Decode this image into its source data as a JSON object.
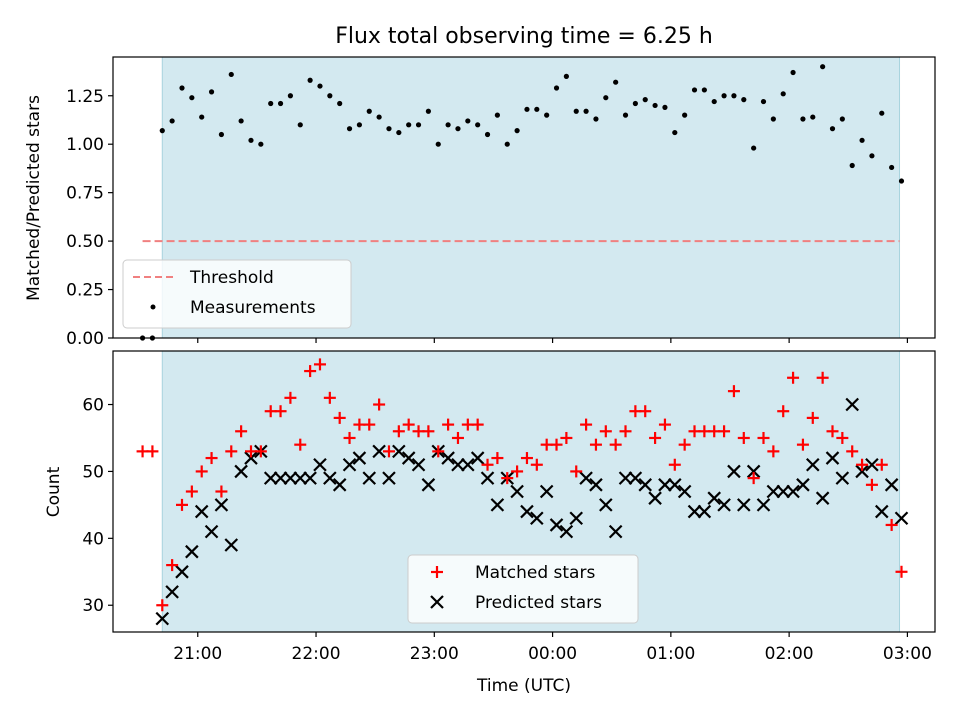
{
  "chart_data": [
    {
      "type": "scatter",
      "title": "Flux total observing time = 6.25 h",
      "xlabel": "",
      "ylabel": "Matched/Predicted stars",
      "ylim": [
        0,
        1.45
      ],
      "yticks": [
        "0.00",
        "0.25",
        "0.50",
        "0.75",
        "1.00",
        "1.25"
      ],
      "ytick_values": [
        0,
        0.25,
        0.5,
        0.75,
        1.0,
        1.25
      ],
      "shaded_region": {
        "start": "20:42",
        "end": "02:56",
        "color": "#d3e9f0"
      },
      "threshold": {
        "name": "Threshold",
        "value": 0.5,
        "start": "20:32",
        "end": "02:56",
        "color": "#f08080"
      },
      "legend": {
        "position": "lower-left",
        "entries": [
          "Threshold",
          "Measurements"
        ]
      },
      "series": [
        {
          "name": "Measurements",
          "color": "#000000",
          "points": [
            [
              "20:32",
              0.0
            ],
            [
              "20:37",
              0.0
            ],
            [
              "20:42",
              1.07
            ],
            [
              "20:47",
              1.12
            ],
            [
              "20:52",
              1.29
            ],
            [
              "20:57",
              1.24
            ],
            [
              "21:02",
              1.14
            ],
            [
              "21:07",
              1.27
            ],
            [
              "21:12",
              1.05
            ],
            [
              "21:17",
              1.36
            ],
            [
              "21:22",
              1.12
            ],
            [
              "21:27",
              1.02
            ],
            [
              "21:32",
              1.0
            ],
            [
              "21:37",
              1.21
            ],
            [
              "21:42",
              1.21
            ],
            [
              "21:47",
              1.25
            ],
            [
              "21:52",
              1.1
            ],
            [
              "21:57",
              1.33
            ],
            [
              "22:02",
              1.3
            ],
            [
              "22:07",
              1.25
            ],
            [
              "22:12",
              1.21
            ],
            [
              "22:17",
              1.08
            ],
            [
              "22:22",
              1.1
            ],
            [
              "22:27",
              1.17
            ],
            [
              "22:32",
              1.14
            ],
            [
              "22:37",
              1.08
            ],
            [
              "22:42",
              1.06
            ],
            [
              "22:47",
              1.1
            ],
            [
              "22:52",
              1.1
            ],
            [
              "22:57",
              1.17
            ],
            [
              "23:02",
              1.0
            ],
            [
              "23:07",
              1.1
            ],
            [
              "23:12",
              1.08
            ],
            [
              "23:17",
              1.12
            ],
            [
              "23:22",
              1.1
            ],
            [
              "23:27",
              1.05
            ],
            [
              "23:32",
              1.15
            ],
            [
              "23:37",
              1.0
            ],
            [
              "23:42",
              1.07
            ],
            [
              "23:47",
              1.18
            ],
            [
              "23:52",
              1.18
            ],
            [
              "23:57",
              1.15
            ],
            [
              "00:02",
              1.29
            ],
            [
              "00:07",
              1.35
            ],
            [
              "00:12",
              1.17
            ],
            [
              "00:17",
              1.17
            ],
            [
              "00:22",
              1.13
            ],
            [
              "00:27",
              1.24
            ],
            [
              "00:32",
              1.32
            ],
            [
              "00:37",
              1.15
            ],
            [
              "00:42",
              1.21
            ],
            [
              "00:47",
              1.23
            ],
            [
              "00:52",
              1.2
            ],
            [
              "00:57",
              1.19
            ],
            [
              "01:02",
              1.06
            ],
            [
              "01:07",
              1.15
            ],
            [
              "01:12",
              1.28
            ],
            [
              "01:17",
              1.28
            ],
            [
              "01:22",
              1.22
            ],
            [
              "01:27",
              1.25
            ],
            [
              "01:32",
              1.25
            ],
            [
              "01:37",
              1.23
            ],
            [
              "01:42",
              0.98
            ],
            [
              "01:47",
              1.22
            ],
            [
              "01:52",
              1.13
            ],
            [
              "01:57",
              1.26
            ],
            [
              "02:02",
              1.37
            ],
            [
              "02:07",
              1.13
            ],
            [
              "02:12",
              1.14
            ],
            [
              "02:17",
              1.4
            ],
            [
              "02:22",
              1.08
            ],
            [
              "02:27",
              1.13
            ],
            [
              "02:32",
              0.89
            ],
            [
              "02:37",
              1.02
            ],
            [
              "02:42",
              0.94
            ],
            [
              "02:47",
              1.16
            ],
            [
              "02:52",
              0.88
            ],
            [
              "02:57",
              0.81
            ]
          ]
        }
      ]
    },
    {
      "type": "scatter",
      "title": "",
      "xlabel": "Time (UTC)",
      "ylabel": "Count",
      "ylim": [
        26,
        68
      ],
      "yticks": [
        "30",
        "40",
        "50",
        "60"
      ],
      "ytick_values": [
        30,
        40,
        50,
        60
      ],
      "xlim": [
        "20:17",
        "03:14"
      ],
      "xticks": [
        "21:00",
        "22:00",
        "23:00",
        "00:00",
        "01:00",
        "02:00",
        "03:00"
      ],
      "shaded_region": {
        "start": "20:42",
        "end": "02:56",
        "color": "#d3e9f0"
      },
      "legend": {
        "position": "lower-center",
        "entries": [
          "Matched stars",
          "Predicted stars"
        ]
      },
      "series": [
        {
          "name": "Matched stars",
          "marker": "+",
          "color": "#ff0000",
          "points": [
            [
              "20:32",
              53
            ],
            [
              "20:37",
              53
            ],
            [
              "20:42",
              30
            ],
            [
              "20:47",
              36
            ],
            [
              "20:52",
              45
            ],
            [
              "20:57",
              47
            ],
            [
              "21:02",
              50
            ],
            [
              "21:07",
              52
            ],
            [
              "21:12",
              47
            ],
            [
              "21:17",
              53
            ],
            [
              "21:22",
              56
            ],
            [
              "21:27",
              53
            ],
            [
              "21:32",
              53
            ],
            [
              "21:37",
              59
            ],
            [
              "21:42",
              59
            ],
            [
              "21:47",
              61
            ],
            [
              "21:52",
              54
            ],
            [
              "21:57",
              65
            ],
            [
              "22:02",
              66
            ],
            [
              "22:07",
              61
            ],
            [
              "22:12",
              58
            ],
            [
              "22:17",
              55
            ],
            [
              "22:22",
              57
            ],
            [
              "22:27",
              57
            ],
            [
              "22:32",
              60
            ],
            [
              "22:37",
              53
            ],
            [
              "22:42",
              56
            ],
            [
              "22:47",
              57
            ],
            [
              "22:52",
              56
            ],
            [
              "22:57",
              56
            ],
            [
              "23:02",
              53
            ],
            [
              "23:07",
              57
            ],
            [
              "23:12",
              55
            ],
            [
              "23:17",
              57
            ],
            [
              "23:22",
              57
            ],
            [
              "23:27",
              51
            ],
            [
              "23:32",
              52
            ],
            [
              "23:37",
              49
            ],
            [
              "23:42",
              50
            ],
            [
              "23:47",
              52
            ],
            [
              "23:52",
              51
            ],
            [
              "23:57",
              54
            ],
            [
              "00:02",
              54
            ],
            [
              "00:07",
              55
            ],
            [
              "00:12",
              50
            ],
            [
              "00:17",
              57
            ],
            [
              "00:22",
              54
            ],
            [
              "00:27",
              56
            ],
            [
              "00:32",
              54
            ],
            [
              "00:37",
              56
            ],
            [
              "00:42",
              59
            ],
            [
              "00:47",
              59
            ],
            [
              "00:52",
              55
            ],
            [
              "00:57",
              57
            ],
            [
              "01:02",
              51
            ],
            [
              "01:07",
              54
            ],
            [
              "01:12",
              56
            ],
            [
              "01:17",
              56
            ],
            [
              "01:22",
              56
            ],
            [
              "01:27",
              56
            ],
            [
              "01:32",
              62
            ],
            [
              "01:37",
              55
            ],
            [
              "01:42",
              49
            ],
            [
              "01:47",
              55
            ],
            [
              "01:52",
              53
            ],
            [
              "01:57",
              59
            ],
            [
              "02:02",
              64
            ],
            [
              "02:07",
              54
            ],
            [
              "02:12",
              58
            ],
            [
              "02:17",
              64
            ],
            [
              "02:22",
              56
            ],
            [
              "02:27",
              55
            ],
            [
              "02:32",
              53
            ],
            [
              "02:37",
              51
            ],
            [
              "02:42",
              48
            ],
            [
              "02:47",
              51
            ],
            [
              "02:52",
              42
            ],
            [
              "02:57",
              35
            ]
          ]
        },
        {
          "name": "Predicted stars",
          "marker": "x",
          "color": "#000000",
          "points": [
            [
              "20:42",
              28
            ],
            [
              "20:47",
              32
            ],
            [
              "20:52",
              35
            ],
            [
              "20:57",
              38
            ],
            [
              "21:02",
              44
            ],
            [
              "21:07",
              41
            ],
            [
              "21:12",
              45
            ],
            [
              "21:17",
              39
            ],
            [
              "21:22",
              50
            ],
            [
              "21:27",
              52
            ],
            [
              "21:32",
              53
            ],
            [
              "21:37",
              49
            ],
            [
              "21:42",
              49
            ],
            [
              "21:47",
              49
            ],
            [
              "21:52",
              49
            ],
            [
              "21:57",
              49
            ],
            [
              "22:02",
              51
            ],
            [
              "22:07",
              49
            ],
            [
              "22:12",
              48
            ],
            [
              "22:17",
              51
            ],
            [
              "22:22",
              52
            ],
            [
              "22:27",
              49
            ],
            [
              "22:32",
              53
            ],
            [
              "22:37",
              49
            ],
            [
              "22:42",
              53
            ],
            [
              "22:47",
              52
            ],
            [
              "22:52",
              51
            ],
            [
              "22:57",
              48
            ],
            [
              "23:02",
              53
            ],
            [
              "23:07",
              52
            ],
            [
              "23:12",
              51
            ],
            [
              "23:17",
              51
            ],
            [
              "23:22",
              52
            ],
            [
              "23:27",
              49
            ],
            [
              "23:32",
              45
            ],
            [
              "23:37",
              49
            ],
            [
              "23:42",
              47
            ],
            [
              "23:47",
              44
            ],
            [
              "23:52",
              43
            ],
            [
              "23:57",
              47
            ],
            [
              "00:02",
              42
            ],
            [
              "00:07",
              41
            ],
            [
              "00:12",
              43
            ],
            [
              "00:17",
              49
            ],
            [
              "00:22",
              48
            ],
            [
              "00:27",
              45
            ],
            [
              "00:32",
              41
            ],
            [
              "00:37",
              49
            ],
            [
              "00:42",
              49
            ],
            [
              "00:47",
              48
            ],
            [
              "00:52",
              46
            ],
            [
              "00:57",
              48
            ],
            [
              "01:02",
              48
            ],
            [
              "01:07",
              47
            ],
            [
              "01:12",
              44
            ],
            [
              "01:17",
              44
            ],
            [
              "01:22",
              46
            ],
            [
              "01:27",
              45
            ],
            [
              "01:32",
              50
            ],
            [
              "01:37",
              45
            ],
            [
              "01:42",
              50
            ],
            [
              "01:47",
              45
            ],
            [
              "01:52",
              47
            ],
            [
              "01:57",
              47
            ],
            [
              "02:02",
              47
            ],
            [
              "02:07",
              48
            ],
            [
              "02:12",
              51
            ],
            [
              "02:17",
              46
            ],
            [
              "02:22",
              52
            ],
            [
              "02:27",
              49
            ],
            [
              "02:32",
              60
            ],
            [
              "02:37",
              50
            ],
            [
              "02:42",
              51
            ],
            [
              "02:47",
              44
            ],
            [
              "02:52",
              48
            ],
            [
              "02:57",
              43
            ]
          ]
        }
      ]
    }
  ]
}
